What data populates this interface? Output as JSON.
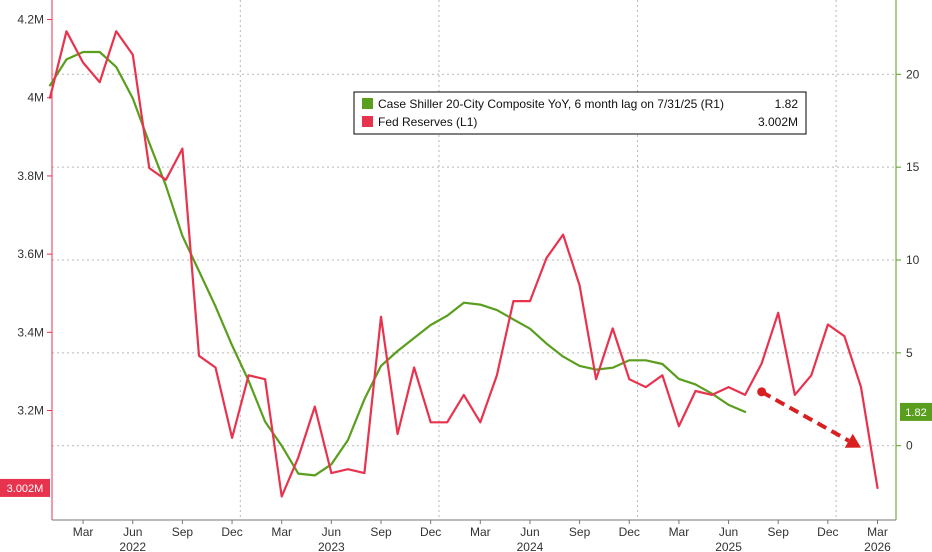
{
  "chart_data": {
    "type": "line",
    "x_months": [
      "2022-01",
      "2022-02",
      "2022-03",
      "2022-04",
      "2022-05",
      "2022-06",
      "2022-07",
      "2022-08",
      "2022-09",
      "2022-10",
      "2022-11",
      "2022-12",
      "2023-01",
      "2023-02",
      "2023-03",
      "2023-04",
      "2023-05",
      "2023-06",
      "2023-07",
      "2023-08",
      "2023-09",
      "2023-10",
      "2023-11",
      "2023-12",
      "2024-01",
      "2024-02",
      "2024-03",
      "2024-04",
      "2024-05",
      "2024-06",
      "2024-07",
      "2024-08",
      "2024-09",
      "2024-10",
      "2024-11",
      "2024-12",
      "2025-01",
      "2025-02",
      "2025-03",
      "2025-04",
      "2025-05",
      "2025-06",
      "2025-07",
      "2025-08",
      "2025-09",
      "2025-10",
      "2025-11",
      "2025-12",
      "2026-01",
      "2026-02",
      "2026-03"
    ],
    "x_tick_labels": [
      {
        "month": "2022-03",
        "label": "Mar"
      },
      {
        "month": "2022-06",
        "label": "Jun"
      },
      {
        "month": "2022-09",
        "label": "Sep"
      },
      {
        "month": "2022-12",
        "label": "Dec"
      },
      {
        "month": "2023-03",
        "label": "Mar"
      },
      {
        "month": "2023-06",
        "label": "Jun"
      },
      {
        "month": "2023-09",
        "label": "Sep"
      },
      {
        "month": "2023-12",
        "label": "Dec"
      },
      {
        "month": "2024-03",
        "label": "Mar"
      },
      {
        "month": "2024-06",
        "label": "Jun"
      },
      {
        "month": "2024-09",
        "label": "Sep"
      },
      {
        "month": "2024-12",
        "label": "Dec"
      },
      {
        "month": "2025-03",
        "label": "Mar"
      },
      {
        "month": "2025-06",
        "label": "Jun"
      },
      {
        "month": "2025-09",
        "label": "Sep"
      },
      {
        "month": "2025-12",
        "label": "Dec"
      },
      {
        "month": "2026-03",
        "label": "Mar"
      }
    ],
    "year_labels": [
      {
        "month": "2022-06",
        "label": "2022"
      },
      {
        "month": "2023-06",
        "label": "2023"
      },
      {
        "month": "2024-06",
        "label": "2024"
      },
      {
        "month": "2025-06",
        "label": "2025"
      },
      {
        "month": "2026-03",
        "label": "2026"
      }
    ],
    "left_axis": {
      "ylim": [
        2.92,
        4.25
      ],
      "ticks": [
        {
          "value": 3.2,
          "label": "3.2M"
        },
        {
          "value": 3.4,
          "label": "3.4M"
        },
        {
          "value": 3.6,
          "label": "3.6M"
        },
        {
          "value": 3.8,
          "label": "3.8M"
        },
        {
          "value": 4.0,
          "label": "4M"
        },
        {
          "value": 4.2,
          "label": "4.2M"
        }
      ]
    },
    "right_axis": {
      "ylim": [
        -4,
        24
      ],
      "ticks": [
        {
          "value": 0,
          "label": "0"
        },
        {
          "value": 5,
          "label": "5"
        },
        {
          "value": 10,
          "label": "10"
        },
        {
          "value": 15,
          "label": "15"
        },
        {
          "value": 20,
          "label": "20"
        }
      ]
    },
    "grid": true,
    "series": [
      {
        "name": "Case Shiller 20-City Composite YoY, 6 month lag on 7/31/25 (R1)",
        "axis": "right",
        "color": "#5a9e1e",
        "last_value_label": "1.82",
        "x": [
          "2022-01",
          "2022-02",
          "2022-03",
          "2022-04",
          "2022-05",
          "2022-06",
          "2022-07",
          "2022-08",
          "2022-09",
          "2022-10",
          "2022-11",
          "2022-12",
          "2023-01",
          "2023-02",
          "2023-03",
          "2023-04",
          "2023-05",
          "2023-06",
          "2023-07",
          "2023-08",
          "2023-09",
          "2023-10",
          "2023-11",
          "2023-12",
          "2024-01",
          "2024-02",
          "2024-03",
          "2024-04",
          "2024-05",
          "2024-06",
          "2024-07",
          "2024-08",
          "2024-09",
          "2024-10",
          "2024-11",
          "2024-12",
          "2025-01",
          "2025-02",
          "2025-03",
          "2025-04",
          "2025-05",
          "2025-06",
          "2025-07"
        ],
        "values": [
          19.4,
          20.8,
          21.2,
          21.2,
          20.4,
          18.7,
          16.3,
          14.0,
          11.3,
          9.4,
          7.5,
          5.4,
          3.5,
          1.3,
          0.0,
          -1.5,
          -1.6,
          -1.0,
          0.3,
          2.5,
          4.3,
          5.1,
          5.8,
          6.5,
          7.0,
          7.7,
          7.6,
          7.3,
          6.8,
          6.3,
          5.5,
          4.8,
          4.3,
          4.1,
          4.2,
          4.6,
          4.6,
          4.4,
          3.6,
          3.3,
          2.8,
          2.2,
          1.82
        ]
      },
      {
        "name": "Fed Reserves (L1)",
        "axis": "left",
        "color": "#e8334f",
        "last_value_label": "3.002M",
        "x": [
          "2022-01",
          "2022-02",
          "2022-03",
          "2022-04",
          "2022-05",
          "2022-06",
          "2022-07",
          "2022-08",
          "2022-09",
          "2022-10",
          "2022-11",
          "2022-12",
          "2023-01",
          "2023-02",
          "2023-03",
          "2023-04",
          "2023-05",
          "2023-06",
          "2023-07",
          "2023-08",
          "2023-09",
          "2023-10",
          "2023-11",
          "2023-12",
          "2024-01",
          "2024-02",
          "2024-03",
          "2024-04",
          "2024-05",
          "2024-06",
          "2024-07",
          "2024-08",
          "2024-09",
          "2024-10",
          "2024-11",
          "2024-12",
          "2025-01",
          "2025-02",
          "2025-03",
          "2025-04",
          "2025-05",
          "2025-06",
          "2025-07",
          "2025-08",
          "2025-09",
          "2025-10",
          "2025-11",
          "2025-12",
          "2026-01",
          "2026-02",
          "2026-03"
        ],
        "values": [
          4.0,
          4.17,
          4.09,
          4.04,
          4.17,
          4.11,
          3.82,
          3.79,
          3.87,
          3.34,
          3.31,
          3.13,
          3.29,
          3.28,
          2.98,
          3.08,
          3.21,
          3.04,
          3.05,
          3.04,
          3.44,
          3.14,
          3.31,
          3.17,
          3.17,
          3.24,
          3.17,
          3.29,
          3.48,
          3.48,
          3.59,
          3.65,
          3.52,
          3.28,
          3.41,
          3.28,
          3.26,
          3.29,
          3.16,
          3.25,
          3.24,
          3.26,
          3.24,
          3.32,
          3.45,
          3.24,
          3.29,
          3.42,
          3.39,
          3.26,
          3.002
        ]
      }
    ],
    "annotations": [
      {
        "type": "dashed-arrow",
        "color": "#d92020",
        "from": {
          "x": "2025-08",
          "y_right": 2.9
        },
        "to": {
          "x": "2026-02",
          "y_right": -0.1
        }
      }
    ],
    "legend": {
      "placement": "top-center",
      "entries": [
        {
          "label": "Case Shiller 20-City Composite YoY, 6 month lag on 7/31/25 (R1)",
          "value": "1.82",
          "color": "#5a9e1e"
        },
        {
          "label": "Fed Reserves (L1)",
          "value": "3.002M",
          "color": "#e8334f"
        }
      ]
    },
    "colors": {
      "grid": "#b8b8b8",
      "right_axis": "#5a9e1e",
      "left_axis": "#e8334f",
      "badge_red": "#e8334f",
      "badge_green": "#5a9e1e"
    }
  }
}
